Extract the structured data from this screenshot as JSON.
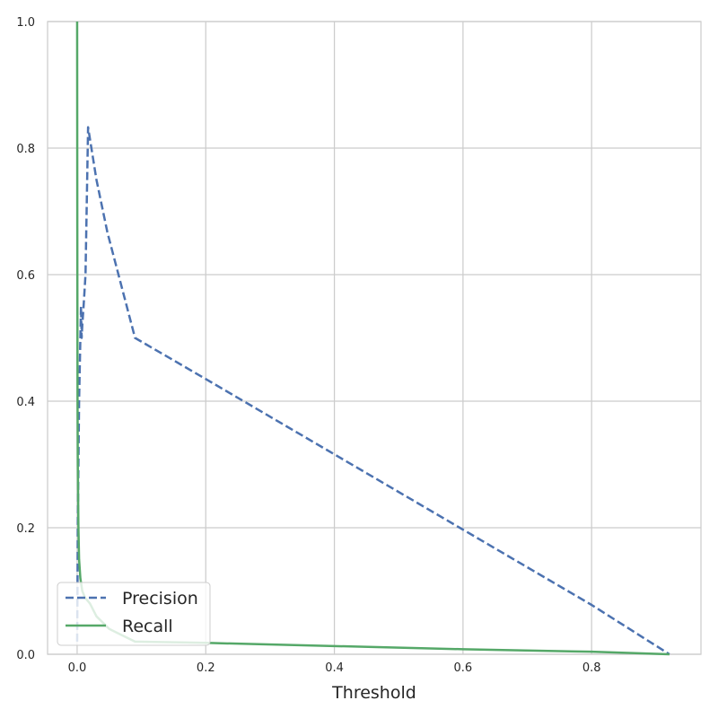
{
  "chart_data": {
    "type": "line",
    "title": "",
    "xlabel": "Threshold",
    "ylabel": "",
    "xlim": [
      -0.046,
      0.97
    ],
    "ylim": [
      0,
      1.0
    ],
    "x_ticks": [
      0.0,
      0.2,
      0.4,
      0.6,
      0.8
    ],
    "x_tick_labels": [
      "0.0",
      "0.2",
      "0.4",
      "0.6",
      "0.8"
    ],
    "y_ticks": [
      0.0,
      0.2,
      0.4,
      0.6,
      0.8,
      1.0
    ],
    "y_tick_labels": [
      "0.0",
      "0.2",
      "0.4",
      "0.6",
      "0.8",
      "1.0"
    ],
    "grid": true,
    "legend_position": "lower-left",
    "series": [
      {
        "name": "Precision",
        "color": "#4c72b0",
        "style": "dashed",
        "x": [
          0.0,
          0.0005,
          0.001,
          0.002,
          0.003,
          0.004,
          0.005,
          0.006,
          0.007,
          0.008,
          0.01,
          0.013,
          0.017,
          0.03,
          0.047,
          0.09,
          0.2,
          0.4,
          0.6,
          0.8,
          0.921
        ],
        "y": [
          0.02,
          0.1,
          0.2,
          0.3,
          0.4,
          0.45,
          0.5,
          0.55,
          0.5,
          0.52,
          0.55,
          0.6,
          0.833,
          0.75,
          0.667,
          0.5,
          0.435,
          0.316,
          0.197,
          0.078,
          0.0
        ]
      },
      {
        "name": "Recall",
        "color": "#55a868",
        "style": "solid",
        "x": [
          0.0,
          0.0003,
          0.0006,
          0.001,
          0.002,
          0.003,
          0.005,
          0.008,
          0.012,
          0.02,
          0.03,
          0.05,
          0.07,
          0.09,
          0.2,
          0.4,
          0.6,
          0.8,
          0.921
        ],
        "y": [
          1.0,
          0.6,
          0.4,
          0.3,
          0.2,
          0.15,
          0.12,
          0.1,
          0.09,
          0.08,
          0.06,
          0.04,
          0.03,
          0.02,
          0.018,
          0.013,
          0.008,
          0.004,
          0.0
        ]
      }
    ]
  }
}
